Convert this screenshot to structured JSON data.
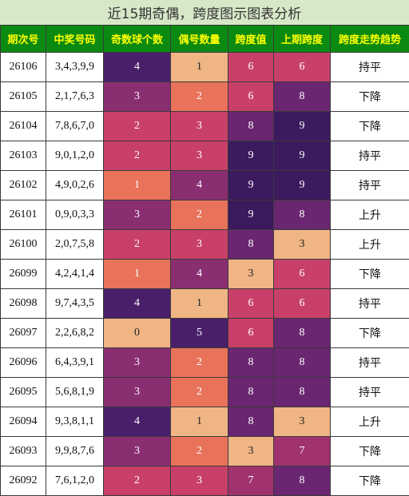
{
  "title": "近15期奇偶，跨度图示图表分析",
  "headers": [
    "期次号",
    "中奖号码",
    "奇数球个数",
    "偶号数量",
    "跨度值",
    "上期跨度",
    "跨度走势趋势"
  ],
  "colors": {
    "header_bg": "#0b8a12",
    "header_text": "#ffff00",
    "title_bg": "#d7e8c8",
    "heat_scale": {
      "0": "#f0b585",
      "1": "#e8735a",
      "2": "#c8406a",
      "3": "#8a2e72",
      "4": "#4a1f6a",
      "5": "#4a1f6a",
      "6": "#c8406a",
      "7": "#8a2e72",
      "8": "#6a2670",
      "9": "#3c1a5e"
    }
  },
  "rows": [
    {
      "issue": "26106",
      "numbers": "3,4,3,9,9",
      "odd": "4",
      "even": "1",
      "span": "6",
      "prev_span": "6",
      "trend": "持平"
    },
    {
      "issue": "26105",
      "numbers": "2,1,7,6,3",
      "odd": "3",
      "even": "2",
      "span": "6",
      "prev_span": "8",
      "trend": "下降"
    },
    {
      "issue": "26104",
      "numbers": "7,8,6,7,0",
      "odd": "2",
      "even": "3",
      "span": "8",
      "prev_span": "9",
      "trend": "下降"
    },
    {
      "issue": "26103",
      "numbers": "9,0,1,2,0",
      "odd": "2",
      "even": "3",
      "span": "9",
      "prev_span": "9",
      "trend": "持平"
    },
    {
      "issue": "26102",
      "numbers": "4,9,0,2,6",
      "odd": "1",
      "even": "4",
      "span": "9",
      "prev_span": "9",
      "trend": "持平"
    },
    {
      "issue": "26101",
      "numbers": "0,9,0,3,3",
      "odd": "3",
      "even": "2",
      "span": "9",
      "prev_span": "8",
      "trend": "上升"
    },
    {
      "issue": "26100",
      "numbers": "2,0,7,5,8",
      "odd": "2",
      "even": "3",
      "span": "8",
      "prev_span": "3",
      "trend": "上升"
    },
    {
      "issue": "26099",
      "numbers": "4,2,4,1,4",
      "odd": "1",
      "even": "4",
      "span": "3",
      "prev_span": "6",
      "trend": "下降"
    },
    {
      "issue": "26098",
      "numbers": "9,7,4,3,5",
      "odd": "4",
      "even": "1",
      "span": "6",
      "prev_span": "6",
      "trend": "持平"
    },
    {
      "issue": "26097",
      "numbers": "2,2,6,8,2",
      "odd": "0",
      "even": "5",
      "span": "6",
      "prev_span": "8",
      "trend": "下降"
    },
    {
      "issue": "26096",
      "numbers": "6,4,3,9,1",
      "odd": "3",
      "even": "2",
      "span": "8",
      "prev_span": "8",
      "trend": "持平"
    },
    {
      "issue": "26095",
      "numbers": "5,6,8,1,9",
      "odd": "3",
      "even": "2",
      "span": "8",
      "prev_span": "8",
      "trend": "持平"
    },
    {
      "issue": "26094",
      "numbers": "9,3,8,1,1",
      "odd": "4",
      "even": "1",
      "span": "8",
      "prev_span": "3",
      "trend": "上升"
    },
    {
      "issue": "26093",
      "numbers": "9,9,8,7,6",
      "odd": "3",
      "even": "2",
      "span": "3",
      "prev_span": "7",
      "trend": "下降"
    },
    {
      "issue": "26092",
      "numbers": "7,6,1,2,0",
      "odd": "2",
      "even": "3",
      "span": "7",
      "prev_span": "8",
      "trend": "下降"
    }
  ]
}
